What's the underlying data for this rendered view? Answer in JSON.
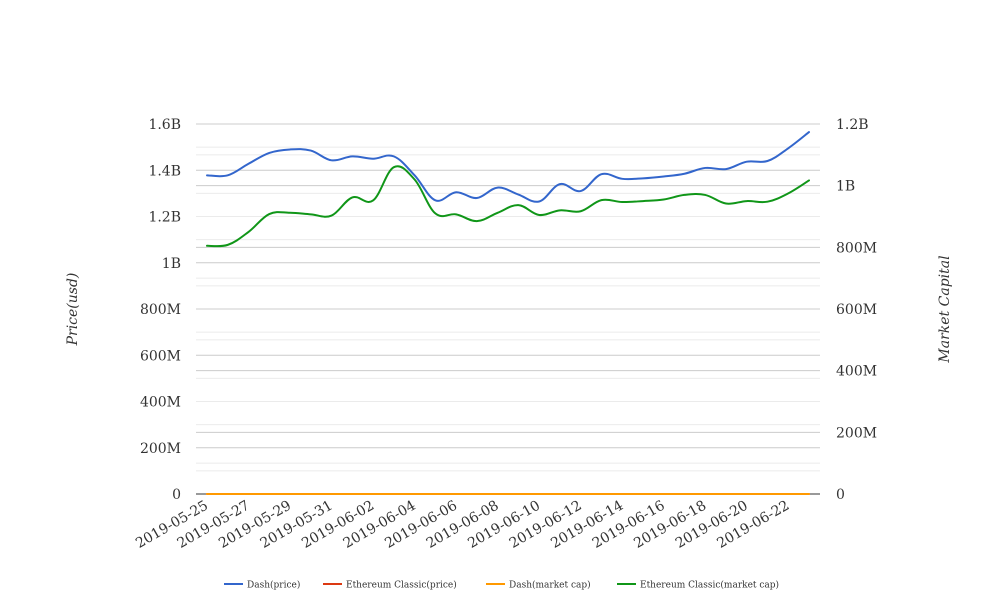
{
  "chart_data": {
    "type": "line",
    "x": [
      "2019-05-25",
      "2019-05-26",
      "2019-05-27",
      "2019-05-28",
      "2019-05-29",
      "2019-05-30",
      "2019-05-31",
      "2019-06-01",
      "2019-06-02",
      "2019-06-03",
      "2019-06-04",
      "2019-06-05",
      "2019-06-06",
      "2019-06-07",
      "2019-06-08",
      "2019-06-09",
      "2019-06-10",
      "2019-06-11",
      "2019-06-12",
      "2019-06-13",
      "2019-06-14",
      "2019-06-15",
      "2019-06-16",
      "2019-06-17",
      "2019-06-18",
      "2019-06-19",
      "2019-06-20",
      "2019-06-21",
      "2019-06-22",
      "2019-06-23"
    ],
    "x_tick_labels": [
      "2019-05-25",
      "2019-05-27",
      "2019-05-29",
      "2019-05-31",
      "2019-06-02",
      "2019-06-04",
      "2019-06-06",
      "2019-06-08",
      "2019-06-10",
      "2019-06-12",
      "2019-06-14",
      "2019-06-16",
      "2019-06-18",
      "2019-06-20",
      "2019-06-22"
    ],
    "ylabel": "Price(usd)",
    "y2label": "Market Capital",
    "ylim": [
      0,
      1600000000
    ],
    "y2lim": [
      0,
      1200000000
    ],
    "y_ticks": [
      {
        "value": 0,
        "label": "0"
      },
      {
        "value": 200000000,
        "label": "200M"
      },
      {
        "value": 400000000,
        "label": "400M"
      },
      {
        "value": 600000000,
        "label": "600M"
      },
      {
        "value": 800000000,
        "label": "800M"
      },
      {
        "value": 1000000000,
        "label": "1B"
      },
      {
        "value": 1200000000,
        "label": "1.2B"
      },
      {
        "value": 1400000000,
        "label": "1.4B"
      },
      {
        "value": 1600000000,
        "label": "1.6B"
      }
    ],
    "y2_ticks": [
      {
        "value": 0,
        "label": "0"
      },
      {
        "value": 200000000,
        "label": "200M"
      },
      {
        "value": 400000000,
        "label": "400M"
      },
      {
        "value": 600000000,
        "label": "600M"
      },
      {
        "value": 800000000,
        "label": "800M"
      },
      {
        "value": 1000000000,
        "label": "1B"
      },
      {
        "value": 1200000000,
        "label": "1.2B"
      }
    ],
    "grid": true,
    "legend_position": "bottom",
    "series": [
      {
        "name": "Dash(price)",
        "axis": "left",
        "color": "#3366cc",
        "values": [
          1378000000,
          1378000000,
          1428000000,
          1475000000,
          1490000000,
          1485000000,
          1443000000,
          1460000000,
          1450000000,
          1460000000,
          1378000000,
          1270000000,
          1305000000,
          1280000000,
          1325000000,
          1295000000,
          1265000000,
          1340000000,
          1310000000,
          1383000000,
          1363000000,
          1365000000,
          1373000000,
          1385000000,
          1410000000,
          1405000000,
          1437000000,
          1440000000,
          1495000000,
          1565000000
        ]
      },
      {
        "name": "Ethereum Classic(price)",
        "axis": "left",
        "color": "#dc3912",
        "values": [
          6.4,
          6.5,
          6.9,
          7.4,
          7.6,
          7.5,
          7.4,
          8.0,
          7.8,
          9.1,
          8.5,
          7.1,
          7.2,
          6.9,
          7.2,
          7.4,
          6.9,
          7.1,
          7.0,
          7.3,
          7.2,
          7.3,
          7.4,
          7.5,
          7.5,
          7.1,
          7.3,
          7.2,
          7.5,
          8.0
        ]
      },
      {
        "name": "Dash(market cap)",
        "axis": "left",
        "color": "#ff9900",
        "values": [
          118,
          118,
          123,
          128,
          129,
          128,
          124,
          126,
          125,
          126,
          119,
          110,
          113,
          111,
          115,
          112,
          110,
          116,
          114,
          120,
          118,
          118,
          119,
          120,
          122,
          122,
          124,
          125,
          129,
          135
        ]
      },
      {
        "name": "Ethereum Classic(market cap)",
        "axis": "right",
        "color": "#109618",
        "values": [
          805000000,
          808000000,
          850000000,
          908000000,
          912000000,
          907000000,
          903000000,
          962000000,
          952000000,
          1060000000,
          1020000000,
          910000000,
          907000000,
          885000000,
          912000000,
          937000000,
          905000000,
          920000000,
          917000000,
          953000000,
          947000000,
          950000000,
          955000000,
          970000000,
          970000000,
          942000000,
          950000000,
          948000000,
          975000000,
          1017000000
        ]
      }
    ]
  }
}
